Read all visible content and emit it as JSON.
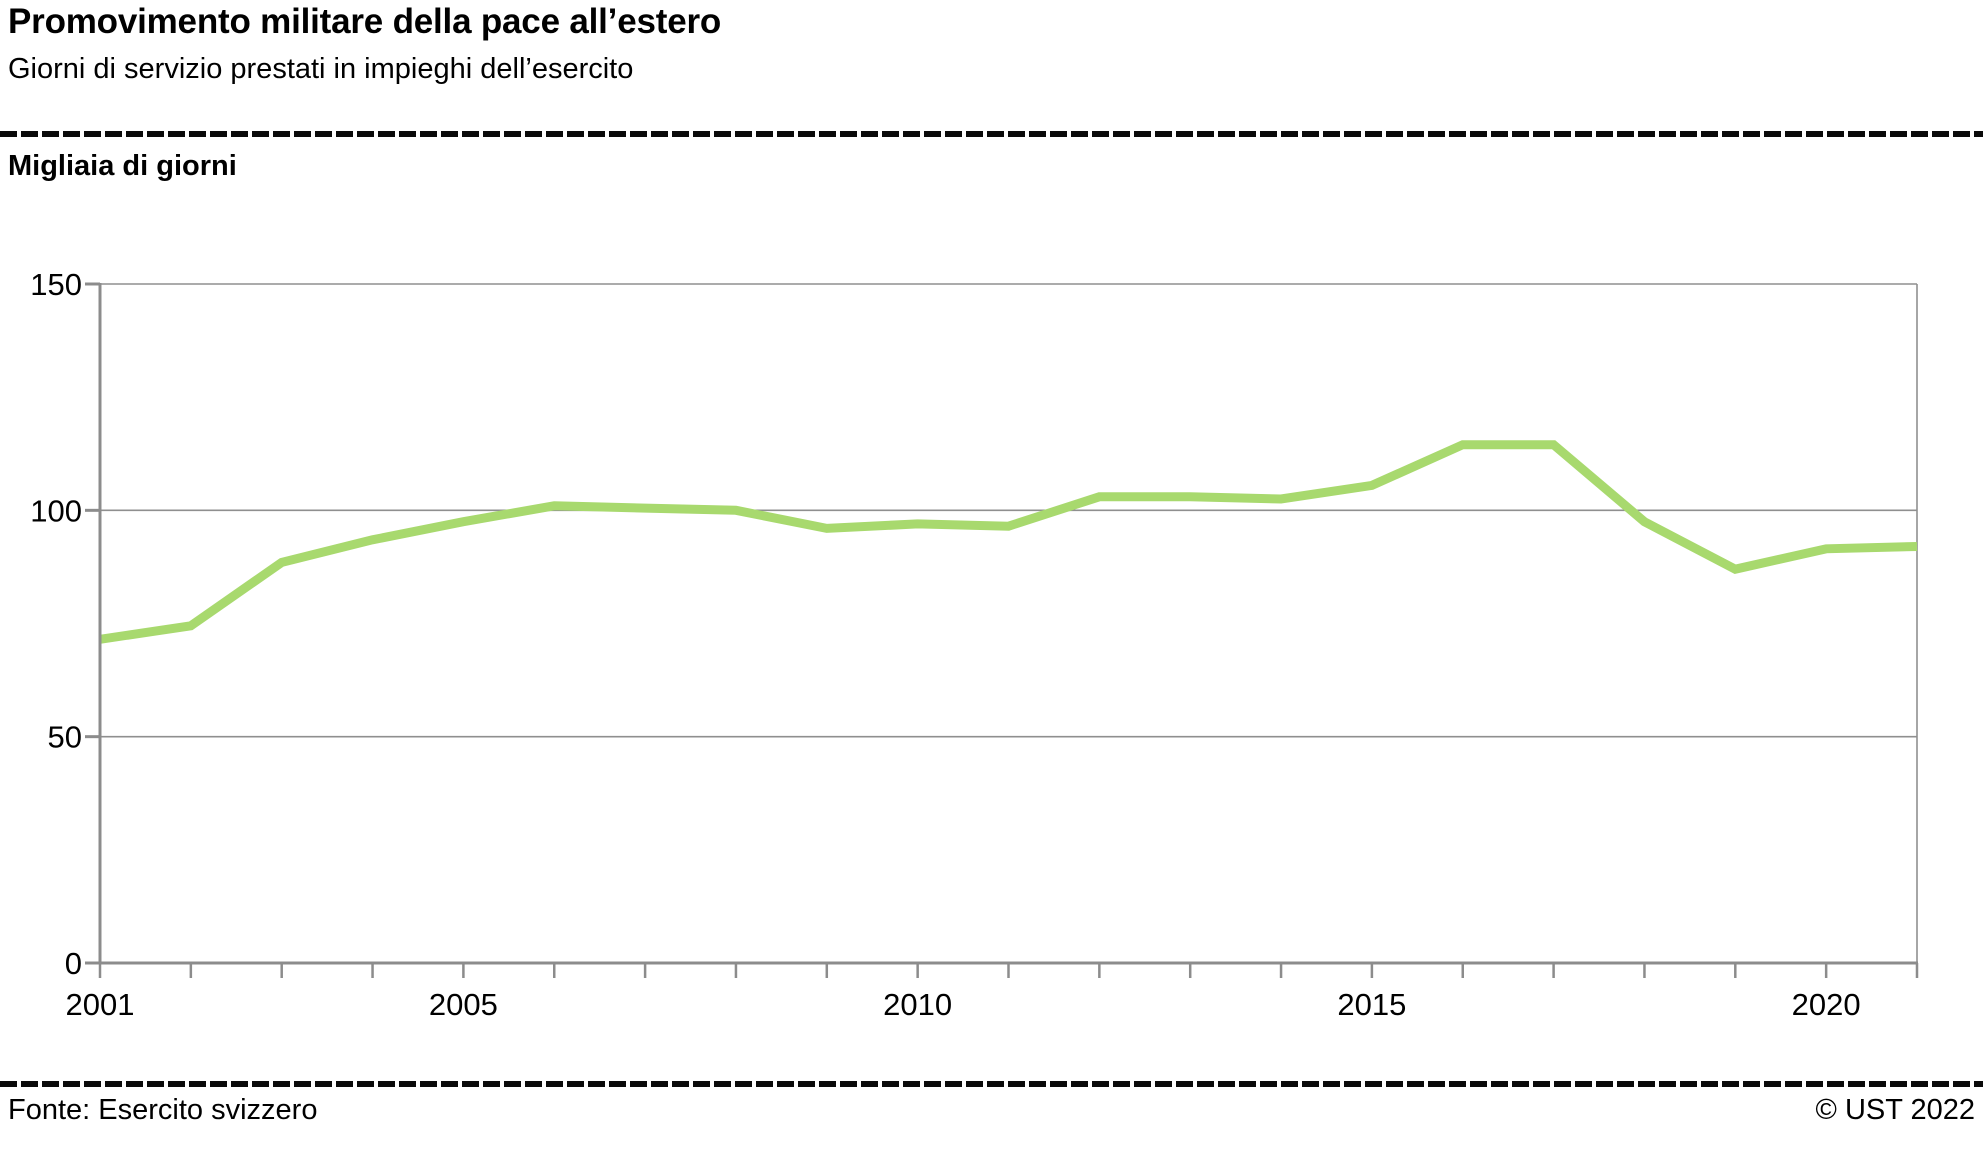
{
  "header": {
    "title": "Promovimento militare della pace all’estero",
    "subtitle": "Giorni di servizio prestati in impieghi dell’esercito"
  },
  "chart": {
    "units_label": "Migliaia di giorni"
  },
  "footer": {
    "source": "Fonte: Esercito svizzero",
    "copyright": "© UST 2022"
  },
  "colors": {
    "line": "#a8d96e",
    "grid": "#8f8f8f",
    "axis": "#8c8c8c",
    "text": "#000000",
    "separator": "#0a0a0a"
  },
  "chart_data": {
    "type": "line",
    "title": "Promovimento militare della pace all’estero",
    "subtitle": "Giorni di servizio prestati in impieghi dell’esercito",
    "ylabel": "Migliaia di giorni",
    "xlabel": "",
    "x": [
      2001,
      2002,
      2003,
      2004,
      2005,
      2006,
      2007,
      2008,
      2009,
      2010,
      2011,
      2012,
      2013,
      2014,
      2015,
      2016,
      2017,
      2018,
      2019,
      2020,
      2021
    ],
    "series": [
      {
        "name": "Giorni di servizio (migliaia)",
        "values": [
          71.5,
          74.5,
          88.5,
          93.5,
          97.5,
          101,
          100.5,
          100,
          96,
          97,
          96.5,
          103,
          103,
          102.5,
          105.5,
          114.5,
          114.5,
          97.5,
          87,
          91.5,
          92
        ]
      }
    ],
    "ylim": [
      0,
      150
    ],
    "yticks": [
      0,
      50,
      100,
      150
    ],
    "xticks_every_year": true,
    "xtick_labels": [
      "2001",
      "2005",
      "2010",
      "2015",
      "2020"
    ],
    "grid": "horizontal",
    "legend_position": "none"
  }
}
